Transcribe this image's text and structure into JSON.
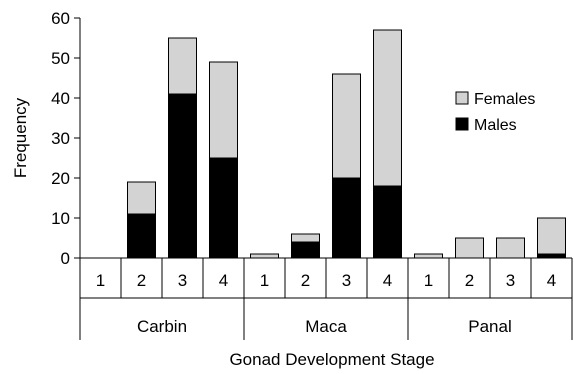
{
  "chart_data": {
    "type": "bar",
    "stacked": true,
    "xlabel": "Gonad Development Stage",
    "ylabel": "Frequency",
    "ylim": [
      0,
      60
    ],
    "yticks": [
      0,
      10,
      20,
      30,
      40,
      50,
      60
    ],
    "grid": false,
    "legend_position": "right",
    "groups": [
      {
        "name": "Carbin",
        "stages": [
          "1",
          "2",
          "3",
          "4"
        ]
      },
      {
        "name": "Maca",
        "stages": [
          "1",
          "2",
          "3",
          "4"
        ]
      },
      {
        "name": "Panal",
        "stages": [
          "1",
          "2",
          "3",
          "4"
        ]
      }
    ],
    "series": [
      {
        "name": "Males",
        "color": "#000000",
        "values": [
          0,
          11,
          41,
          25,
          0,
          4,
          20,
          18,
          0,
          0,
          0,
          1
        ]
      },
      {
        "name": "Females",
        "color": "#d3d3d3",
        "values": [
          0,
          8,
          14,
          24,
          1,
          2,
          26,
          39,
          1,
          5,
          5,
          9
        ]
      }
    ],
    "legend": {
      "items": [
        {
          "label": "Females",
          "color": "#d3d3d3"
        },
        {
          "label": "Males",
          "color": "#000000"
        }
      ]
    }
  }
}
